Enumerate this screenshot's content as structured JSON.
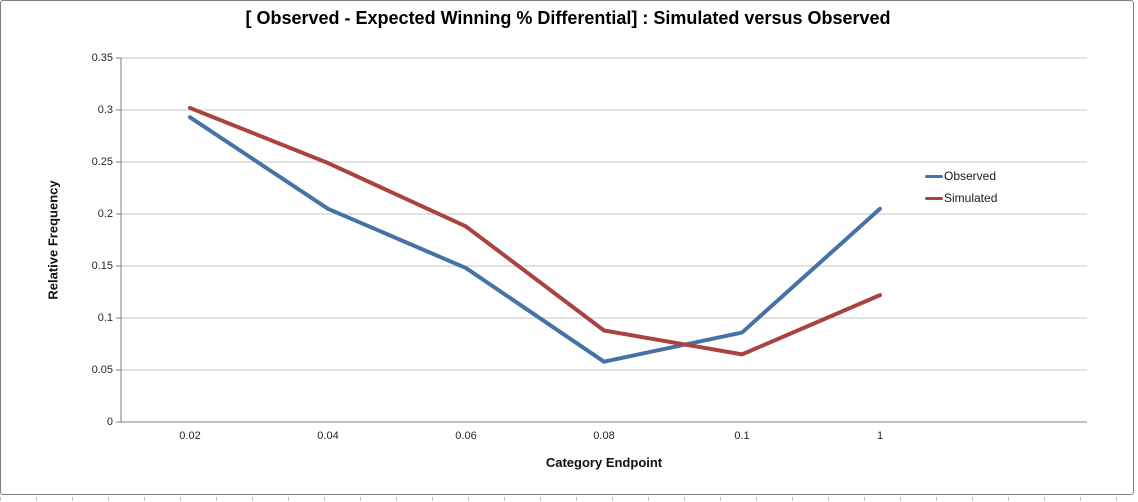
{
  "chart_data": {
    "type": "line",
    "title": "[ Observed - Expected Winning % Differential] : Simulated versus Observed",
    "xlabel": "Category Endpoint",
    "ylabel": "Relative Frequency",
    "categories": [
      "0.02",
      "0.04",
      "0.06",
      "0.08",
      "0.1",
      "1"
    ],
    "series": [
      {
        "name": "Observed",
        "color": "#4572A7",
        "values": [
          0.293,
          0.205,
          0.148,
          0.058,
          0.086,
          0.205
        ]
      },
      {
        "name": "Simulated",
        "color": "#AA433F",
        "values": [
          0.302,
          0.249,
          0.188,
          0.088,
          0.065,
          0.122
        ]
      }
    ],
    "ylim": [
      0,
      0.35
    ],
    "yticks": [
      "0",
      "0.05",
      "0.1",
      "0.15",
      "0.2",
      "0.25",
      "0.3",
      "0.35"
    ],
    "grid": true,
    "legend_position": "inside-right"
  },
  "style": {
    "background": "#FFFFFF",
    "frame_border_color": "#7F7F7F",
    "gridline_color": "#C6C6C6",
    "axis_color": "#7F7F7F",
    "tick_label_color": "#262626",
    "title_color": "#000000",
    "cell_tick_color": "#B7C0CA"
  }
}
